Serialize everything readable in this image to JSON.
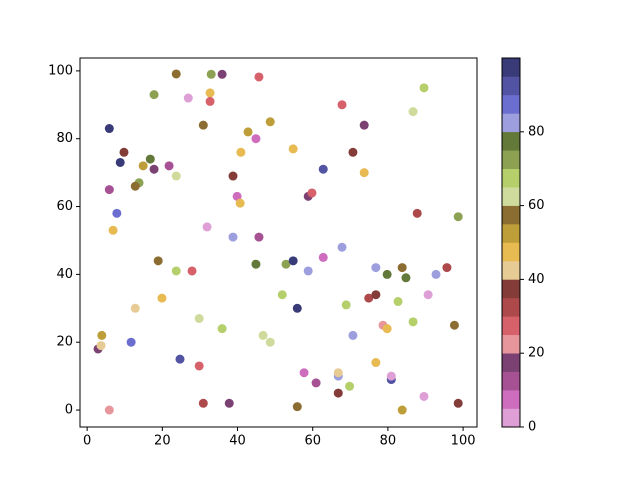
{
  "chart_data": {
    "type": "scatter",
    "x": [
      23.7,
      33,
      35.9,
      45.7,
      17.8,
      26.9,
      32.7,
      32.7,
      89.6,
      67.8,
      86.7,
      5.9,
      30.9,
      42.8,
      48.7,
      73.7,
      44.9,
      8.8,
      9.8,
      16.8,
      40.9,
      54.8,
      62.8,
      70.7,
      13.8,
      12.8,
      14.9,
      17.8,
      21.8,
      23.7,
      5.9,
      38.8,
      39.9,
      40.7,
      58.8,
      59.8,
      73.7,
      7.9,
      6.9,
      31.9,
      38.8,
      45.7,
      87.8,
      98.7,
      18.9,
      23.7,
      27.9,
      44.9,
      52.9,
      54.8,
      58.8,
      62.8,
      67.8,
      76.8,
      79.8,
      83.8,
      84.8,
      92.8,
      95.7,
      74.9,
      76.8,
      82.7,
      90.7,
      19.9,
      51.9,
      55.9,
      68.9,
      12.8,
      29.8,
      35.9,
      46.8,
      48.7,
      70.7,
      78.7,
      79.8,
      86.7,
      97.7,
      3.9,
      2.9,
      3.7,
      11.7,
      24.7,
      29.8,
      57.7,
      60.9,
      66.8,
      66.8,
      69.8,
      76.8,
      80.9,
      80.9,
      89.6,
      66.8,
      5.9,
      30.9,
      37.8,
      55.9,
      83.8,
      98.7
    ],
    "y": [
      99.1,
      99,
      99,
      98.2,
      93,
      92,
      93.5,
      91,
      95,
      90,
      88,
      83,
      84,
      82,
      85,
      84,
      80,
      73,
      76,
      74,
      76,
      77,
      71,
      76,
      67,
      66,
      72,
      71,
      72,
      69,
      65,
      69,
      63,
      61,
      63,
      64,
      70,
      58,
      53,
      54,
      51,
      51,
      58,
      57,
      44,
      41,
      41,
      43,
      43,
      44,
      41,
      45,
      48,
      42,
      40,
      42,
      39,
      40,
      42,
      33,
      34,
      32,
      34,
      33,
      34,
      30,
      31,
      30,
      27,
      24,
      22,
      20,
      22,
      25,
      24,
      26,
      25,
      22,
      18,
      19,
      20,
      15,
      13,
      11,
      8,
      10,
      11,
      7,
      14,
      9,
      10,
      4,
      5,
      0,
      2,
      2,
      1,
      0,
      2
    ],
    "c": [
      57,
      72,
      17,
      27,
      72,
      2,
      47,
      27,
      67,
      27,
      62,
      97,
      57,
      52,
      52,
      17,
      7,
      97,
      37,
      77,
      47,
      47,
      92,
      37,
      72,
      57,
      52,
      17,
      12,
      62,
      12,
      37,
      7,
      47,
      17,
      27,
      47,
      87,
      47,
      2,
      82,
      12,
      32,
      72,
      57,
      67,
      27,
      77,
      72,
      97,
      82,
      7,
      82,
      82,
      77,
      57,
      77,
      82,
      32,
      32,
      37,
      67,
      2,
      47,
      67,
      97,
      67,
      42,
      62,
      67,
      62,
      62,
      82,
      22,
      47,
      67,
      57,
      52,
      17,
      42,
      87,
      92,
      27,
      7,
      12,
      82,
      42,
      67,
      47,
      92,
      2,
      2,
      37,
      22,
      32,
      17,
      57,
      52,
      37
    ],
    "colormap": [
      "#de9ed6",
      "#ce6dbd",
      "#a55194",
      "#7b4173",
      "#e7969c",
      "#d6616b",
      "#ad494a",
      "#843c39",
      "#e7cb94",
      "#e7ba52",
      "#bd9e39",
      "#8c6d31",
      "#cedb9c",
      "#b5cf6b",
      "#8ca252",
      "#637939",
      "#9c9ede",
      "#6b6ecf",
      "#5254a3",
      "#393b79"
    ],
    "clim": [
      0,
      100
    ],
    "cticks": [
      0,
      20,
      40,
      60,
      80
    ],
    "xlim": [
      -1.9,
      103.7
    ],
    "ylim": [
      -5,
      103.8
    ],
    "xticks": [
      0,
      20,
      40,
      60,
      80,
      100
    ],
    "yticks": [
      0,
      20,
      40,
      60,
      80,
      100
    ]
  }
}
